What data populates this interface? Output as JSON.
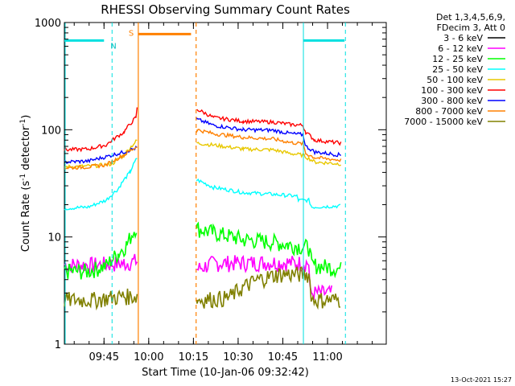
{
  "chart_data": {
    "type": "line",
    "title": "RHESSI Observing Summary Count Rates",
    "xlabel": "Start Time (10-Jan-06 09:32:42)",
    "ylabel_parts": [
      "Count Rate (s",
      "-1",
      " detector",
      "-1",
      ")"
    ],
    "ylim": [
      1,
      1000
    ],
    "yscale": "log",
    "xlim_min": [
      0,
      108
    ],
    "x_ticks": [
      {
        "t": 13.3,
        "label": "09:45"
      },
      {
        "t": 28.3,
        "label": "10:00"
      },
      {
        "t": 43.3,
        "label": "10:15"
      },
      {
        "t": 58.3,
        "label": "10:30"
      },
      {
        "t": 73.3,
        "label": "10:45"
      },
      {
        "t": 88.3,
        "label": "11:00"
      }
    ],
    "y_ticks": [
      {
        "v": 1,
        "label": "1"
      },
      {
        "v": 10,
        "label": "10"
      },
      {
        "v": 100,
        "label": "100"
      },
      {
        "v": 1000,
        "label": "1000"
      }
    ],
    "legend": {
      "position": "right",
      "header": [
        "Det 1,3,4,5,6,9,",
        "FDecim 3, Att 0"
      ]
    },
    "gap": [
      24.8,
      44.2
    ],
    "series": [
      {
        "name": "3 - 6 keV",
        "color": "#000000",
        "points": []
      },
      {
        "name": "6 - 12 keV",
        "color": "#ff00ff",
        "points": [
          [
            0,
            5.5
          ],
          [
            10,
            5.5
          ],
          [
            20,
            5.7
          ],
          [
            24.5,
            6
          ],
          [
            44.5,
            5
          ],
          [
            50,
            5.7
          ],
          [
            70,
            5.8
          ],
          [
            82,
            5.7
          ],
          [
            82.5,
            3
          ],
          [
            90,
            3
          ],
          [
            90,
            2.7
          ]
        ]
      },
      {
        "name": "12 - 25 keV",
        "color": "#00ff00",
        "points": [
          [
            0,
            4.8
          ],
          [
            8,
            4.8
          ],
          [
            14,
            5.4
          ],
          [
            18,
            7
          ],
          [
            21,
            8.5
          ],
          [
            24.5,
            13
          ],
          [
            44.5,
            12
          ],
          [
            50,
            11
          ],
          [
            60,
            9.5
          ],
          [
            70,
            9
          ],
          [
            75,
            8.5
          ],
          [
            82,
            8
          ],
          [
            83,
            5.5
          ],
          [
            90,
            5.2
          ],
          [
            93,
            5
          ]
        ]
      },
      {
        "name": "25 - 50 keV",
        "color": "#00ffff",
        "points": [
          [
            0,
            18.5
          ],
          [
            8,
            19
          ],
          [
            14,
            22
          ],
          [
            18,
            28
          ],
          [
            22,
            40
          ],
          [
            24.5,
            55
          ],
          [
            44.5,
            34
          ],
          [
            50,
            29
          ],
          [
            60,
            26
          ],
          [
            70,
            25
          ],
          [
            78,
            24
          ],
          [
            78.5,
            22
          ],
          [
            82,
            22
          ],
          [
            83,
            19
          ],
          [
            93,
            19.5
          ]
        ]
      },
      {
        "name": "50 - 100 keV",
        "color": "#e8c800",
        "points": [
          [
            0,
            45
          ],
          [
            10,
            46
          ],
          [
            16,
            48
          ],
          [
            20,
            58
          ],
          [
            24.5,
            80
          ],
          [
            44.5,
            75
          ],
          [
            50,
            72
          ],
          [
            60,
            66
          ],
          [
            70,
            65
          ],
          [
            76,
            60
          ],
          [
            80,
            58
          ],
          [
            82,
            54
          ],
          [
            84,
            50
          ],
          [
            93,
            48
          ]
        ]
      },
      {
        "name": "100 - 300 keV",
        "color": "#ff0000",
        "points": [
          [
            0,
            65
          ],
          [
            8,
            66
          ],
          [
            14,
            72
          ],
          [
            20,
            95
          ],
          [
            24,
            130
          ],
          [
            24.5,
            165
          ],
          [
            44.5,
            155
          ],
          [
            50,
            130
          ],
          [
            60,
            120
          ],
          [
            70,
            118
          ],
          [
            76,
            112
          ],
          [
            80,
            110
          ],
          [
            81,
            95
          ],
          [
            84,
            80
          ],
          [
            93,
            75
          ]
        ]
      },
      {
        "name": "300 - 800 keV",
        "color": "#0000ff",
        "points": [
          [
            0,
            50
          ],
          [
            8,
            51
          ],
          [
            14,
            56
          ],
          [
            20,
            62
          ],
          [
            24.5,
            68
          ],
          [
            44.5,
            125
          ],
          [
            50,
            110
          ],
          [
            60,
            100
          ],
          [
            70,
            99
          ],
          [
            76,
            92
          ],
          [
            80,
            90
          ],
          [
            81,
            70
          ],
          [
            84,
            62
          ],
          [
            93,
            58
          ]
        ]
      },
      {
        "name": "800 - 7000 keV",
        "color": "#ff8000",
        "points": [
          [
            0,
            44
          ],
          [
            8,
            45
          ],
          [
            14,
            47
          ],
          [
            20,
            58
          ],
          [
            24.5,
            70
          ],
          [
            44.5,
            100
          ],
          [
            50,
            92
          ],
          [
            60,
            85
          ],
          [
            70,
            82
          ],
          [
            76,
            76
          ],
          [
            80,
            74
          ],
          [
            81,
            60
          ],
          [
            84,
            55
          ],
          [
            93,
            52
          ]
        ]
      },
      {
        "name": "7000 - 15000 keV",
        "color": "#808000",
        "points": [
          [
            0,
            2.6
          ],
          [
            10,
            2.6
          ],
          [
            20,
            2.8
          ],
          [
            24.5,
            2.8
          ],
          [
            44.5,
            2.6
          ],
          [
            55,
            2.7
          ],
          [
            60,
            3.4
          ],
          [
            65,
            4
          ],
          [
            72,
            4.5
          ],
          [
            78,
            4.5
          ],
          [
            82,
            4.5
          ],
          [
            83,
            2.6
          ],
          [
            93,
            2.6
          ]
        ]
      }
    ],
    "saa": {
      "label": "S",
      "x": [
        24.8,
        42.5
      ],
      "level": 780
    },
    "night": {
      "label": "N",
      "x": [
        0,
        13.3
      ],
      "level": 680
    },
    "night2": {
      "x": [
        80.2,
        94
      ],
      "level": 680
    },
    "cyan_markers_dashed": [
      16.0,
      94.3
    ],
    "cyan_markers_solid": [
      80.2
    ],
    "orange_markers_solid": [
      24.8
    ],
    "orange_markers_dashed": [
      44.2
    ],
    "timestamp": "13-Oct-2021 15:27"
  }
}
